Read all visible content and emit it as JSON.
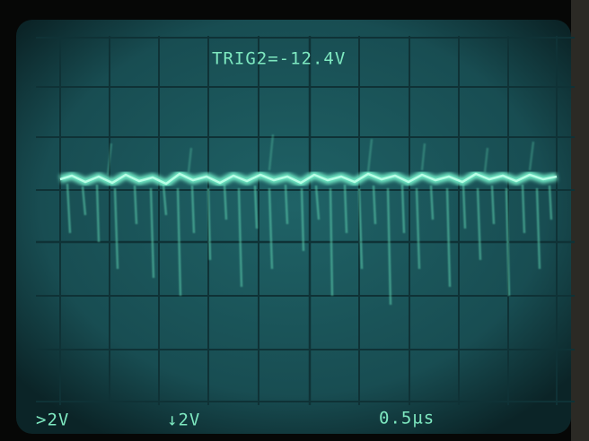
{
  "screen": {
    "trigger": "TRIG2=-12.4V",
    "channel1_scale": ">2V",
    "channel2_scale": "↓2V",
    "timebase": "0.5µs"
  }
}
